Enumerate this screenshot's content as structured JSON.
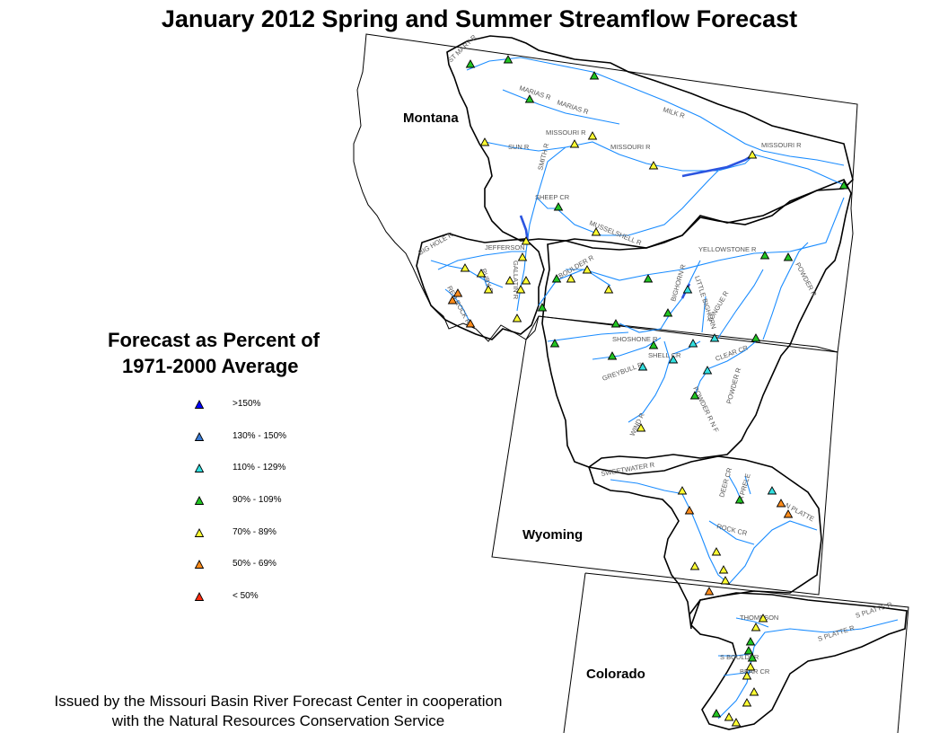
{
  "title": "January 2012 Spring and Summer Streamflow Forecast",
  "states": {
    "montana": "Montana",
    "wyoming": "Wyoming",
    "colorado": "Colorado"
  },
  "legend": {
    "title_line1": "Forecast as Percent of",
    "title_line2": "1971-2000 Average",
    "classes": [
      {
        "label": ">150%",
        "color": "#0000ff"
      },
      {
        "label": "130% - 150%",
        "color": "#3a7bd5"
      },
      {
        "label": "110% - 129%",
        "color": "#33e0e0"
      },
      {
        "label": "90% - 109%",
        "color": "#22c522"
      },
      {
        "label": "70% - 89%",
        "color": "#ffff33"
      },
      {
        "label": "50% - 69%",
        "color": "#ff8c1a"
      },
      {
        "label": "< 50%",
        "color": "#ff2b0f"
      }
    ]
  },
  "river_labels": [
    "MILK R",
    "MARIAS R",
    "MARIAS R",
    "MISSOURI R",
    "MISSOURI R",
    "MISSOURI R",
    "SUN R",
    "SMITH R",
    "SHEEP CR",
    "MUSSELSHELL R",
    "JEFFERSON",
    "BIG HOLE R",
    "RUBY R",
    "GALLATIN R",
    "BOULDER R",
    "YELLOWSTONE R",
    "BIGHORN R",
    "LITTLE BIGHORN",
    "TONGUE R",
    "POWDER R",
    "SHOSHONE R",
    "GREYBULL R",
    "SHELL CR",
    "CLEAR CR",
    "POWDER R N F",
    "POWDER R",
    "WIND R",
    "SWEETWATER R",
    "DEER CR",
    "LA PRELE",
    "N PLATTE",
    "ROCK CR",
    "S PLATTE R",
    "S PLATTE R",
    "THOMPSON",
    "S BOULDER",
    "BEAR CR",
    "RED ROCK R",
    "ST MARY R"
  ],
  "credit_line1": "Issued by the Missouri Basin River Forecast Center in cooperation",
  "credit_line2": "with the Natural Resources Conservation Service"
}
